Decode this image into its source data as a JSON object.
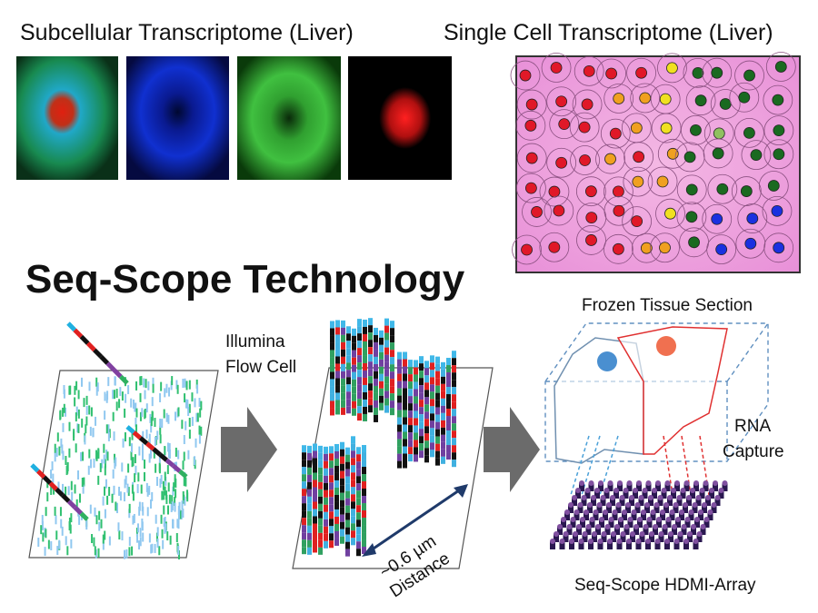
{
  "panels": {
    "subcellular": {
      "title": "Subcellular Transcriptome (Liver)"
    },
    "single_cell": {
      "title": "Single Cell Transcriptome (Liver)"
    }
  },
  "title": "Seq-Scope Technology",
  "labels": {
    "flow_cell": [
      "Illumina",
      "Flow Cell"
    ],
    "tissue": "Frozen Tissue Section",
    "capture": [
      "RNA",
      "Capture"
    ],
    "distance": [
      "~0.6 µm",
      "Distance"
    ],
    "array": "Seq-Scope HDMI-Array"
  }
}
